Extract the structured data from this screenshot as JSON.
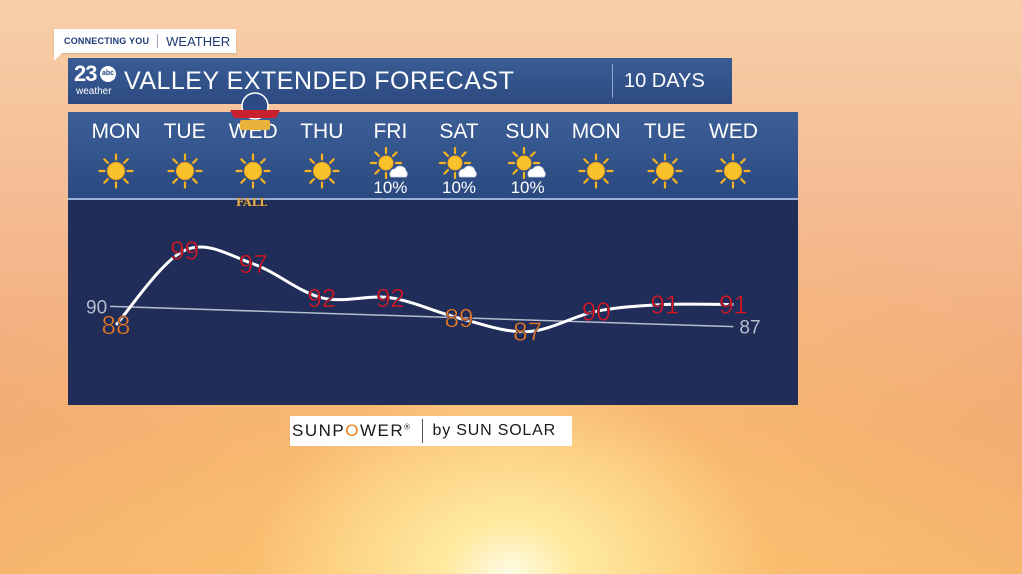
{
  "header": {
    "tag_small": "CONNECTING YOU",
    "tag_big": "WEATHER",
    "logo_number": "23",
    "logo_network": "abc",
    "logo_sub": "weather",
    "title": "VALLEY EXTENDED FORECAST",
    "range": "10 DAYS"
  },
  "badge": {
    "text": "KERN COUNTY",
    "sub": "FALL"
  },
  "sponsor": {
    "brand_part1": "SUNP",
    "brand_o": "O",
    "brand_part2": "WER",
    "reg": "®",
    "by": "by SUN SOLAR"
  },
  "colors": {
    "hot": "#e0141e",
    "warm": "#f07a22",
    "line": "#ffffff",
    "normal_line": "#b4bccd",
    "panel_top": "#2f4f86",
    "panel_bottom": "#1f2d58"
  },
  "chart_data": {
    "type": "line",
    "categories": [
      "MON",
      "TUE",
      "WED",
      "THU",
      "FRI",
      "SAT",
      "SUN",
      "MON",
      "TUE",
      "WED"
    ],
    "icons": [
      "sun-icon",
      "sun-icon",
      "sun-icon",
      "sun-icon",
      "partly-sunny-icon",
      "partly-sunny-icon",
      "partly-sunny-icon",
      "sun-icon",
      "sun-icon",
      "sun-icon"
    ],
    "precip": [
      "",
      "",
      "",
      "",
      "10%",
      "10%",
      "10%",
      "",
      "",
      ""
    ],
    "series": [
      {
        "values": [
          88,
          99,
          97,
          92,
          92,
          89,
          87,
          90,
          91,
          91
        ]
      }
    ],
    "normal": {
      "start_label": "90",
      "end_label": "87",
      "start": 90,
      "end": 87
    },
    "ylim": [
      84,
      102
    ]
  }
}
